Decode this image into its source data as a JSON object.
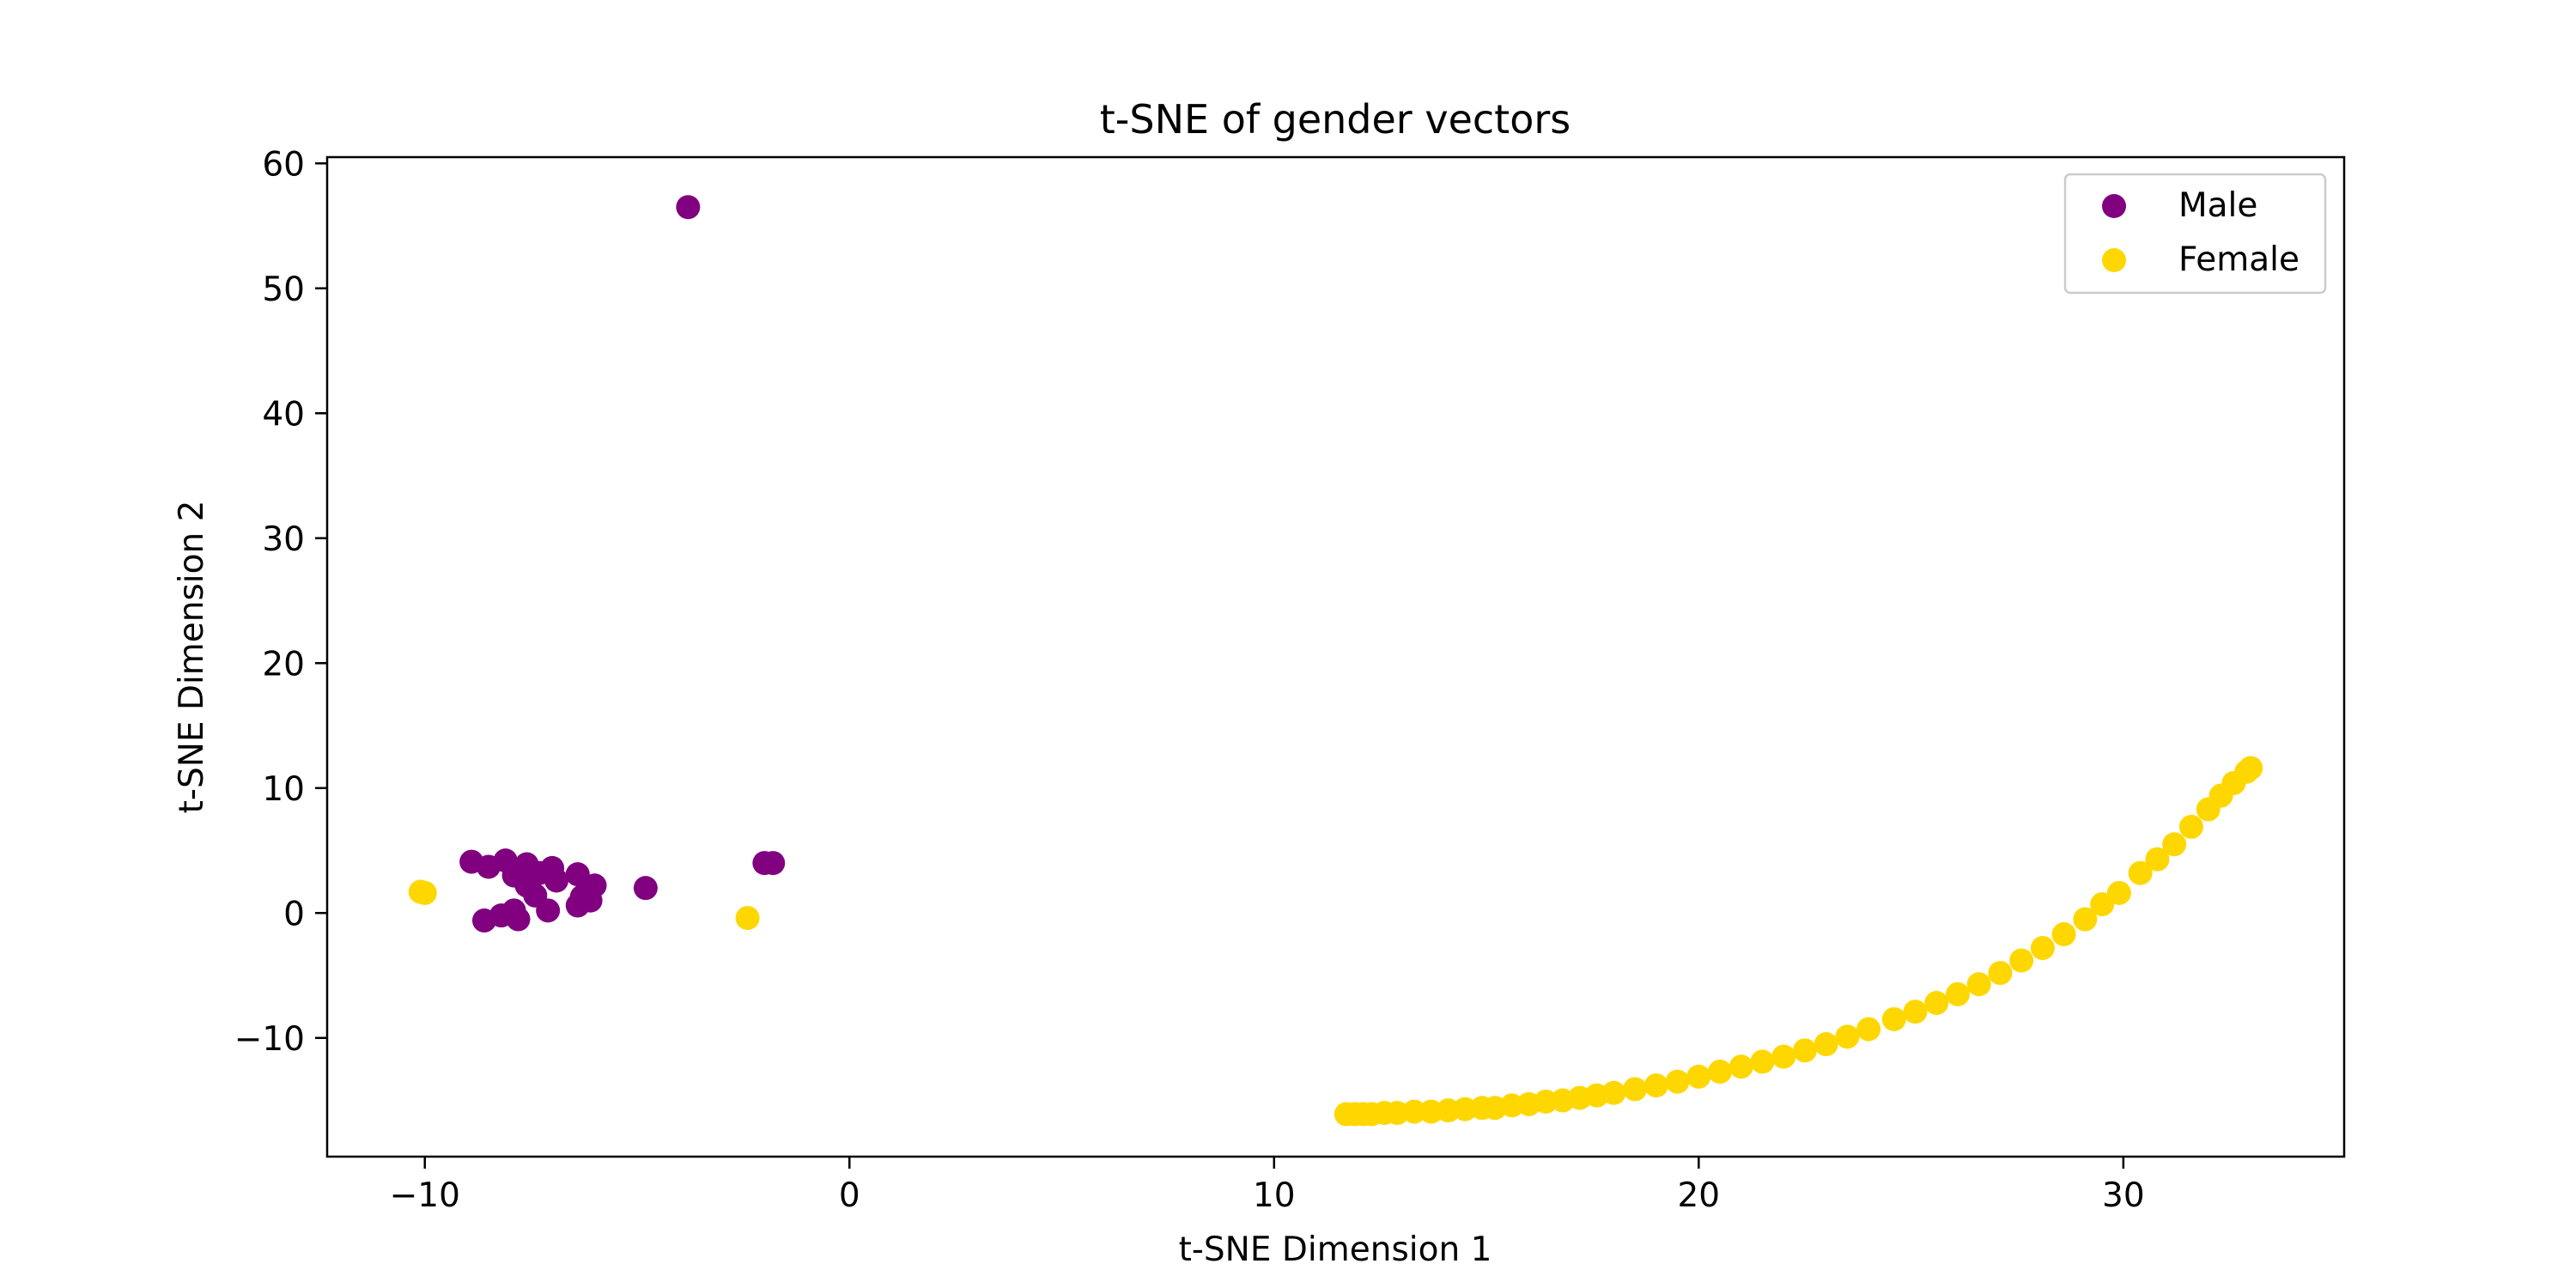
{
  "chart_data": {
    "type": "scatter",
    "title": "t-SNE of gender vectors",
    "xlabel": "t-SNE Dimension 1",
    "ylabel": "t-SNE Dimension 2",
    "xlim": [
      -12.3,
      35.2
    ],
    "ylim": [
      -19.5,
      60.5
    ],
    "xticks": [
      -10,
      0,
      10,
      20,
      30
    ],
    "xtick_labels": [
      "−10",
      "0",
      "10",
      "20",
      "30"
    ],
    "yticks": [
      -10,
      0,
      10,
      20,
      30,
      40,
      50,
      60
    ],
    "ytick_labels": [
      "−10",
      "0",
      "10",
      "20",
      "30",
      "40",
      "50",
      "60"
    ],
    "grid": false,
    "legend_position": "upper right",
    "series": [
      {
        "name": "Male",
        "color": "#800080",
        "points": [
          [
            -3.8,
            56.5
          ],
          [
            -8.9,
            4.1
          ],
          [
            -8.5,
            3.7
          ],
          [
            -8.1,
            4.2
          ],
          [
            -7.6,
            3.9
          ],
          [
            -7.0,
            3.6
          ],
          [
            -7.9,
            3.0
          ],
          [
            -7.3,
            3.2
          ],
          [
            -6.9,
            2.6
          ],
          [
            -6.4,
            3.1
          ],
          [
            -6.0,
            2.2
          ],
          [
            -7.6,
            2.2
          ],
          [
            -7.4,
            1.4
          ],
          [
            -6.3,
            1.3
          ],
          [
            -6.1,
            1.0
          ],
          [
            -6.4,
            0.6
          ],
          [
            -8.6,
            -0.6
          ],
          [
            -8.2,
            -0.2
          ],
          [
            -7.9,
            0.2
          ],
          [
            -7.8,
            -0.5
          ],
          [
            -7.1,
            0.2
          ],
          [
            -4.8,
            2.0
          ],
          [
            -2.0,
            4.0
          ],
          [
            -1.8,
            4.0
          ]
        ]
      },
      {
        "name": "Female",
        "color": "#ffd700",
        "points": [
          [
            -10.1,
            1.7
          ],
          [
            -10.0,
            1.6
          ],
          [
            -2.4,
            -0.4
          ],
          [
            11.7,
            -16.1
          ],
          [
            11.9,
            -16.1
          ],
          [
            12.1,
            -16.1
          ],
          [
            12.3,
            -16.1
          ],
          [
            12.6,
            -16.0
          ],
          [
            12.9,
            -16.0
          ],
          [
            13.3,
            -15.9
          ],
          [
            13.7,
            -15.9
          ],
          [
            14.1,
            -15.8
          ],
          [
            14.5,
            -15.7
          ],
          [
            14.9,
            -15.6
          ],
          [
            15.2,
            -15.6
          ],
          [
            15.6,
            -15.4
          ],
          [
            16.0,
            -15.3
          ],
          [
            16.4,
            -15.1
          ],
          [
            16.8,
            -15.0
          ],
          [
            17.2,
            -14.8
          ],
          [
            17.6,
            -14.6
          ],
          [
            18.0,
            -14.4
          ],
          [
            18.5,
            -14.1
          ],
          [
            19.0,
            -13.8
          ],
          [
            19.5,
            -13.5
          ],
          [
            20.0,
            -13.1
          ],
          [
            20.5,
            -12.7
          ],
          [
            21.0,
            -12.3
          ],
          [
            21.5,
            -11.9
          ],
          [
            22.0,
            -11.5
          ],
          [
            22.5,
            -11.0
          ],
          [
            23.0,
            -10.5
          ],
          [
            23.5,
            -9.9
          ],
          [
            24.0,
            -9.3
          ],
          [
            24.6,
            -8.5
          ],
          [
            25.1,
            -7.9
          ],
          [
            25.6,
            -7.2
          ],
          [
            26.1,
            -6.5
          ],
          [
            26.6,
            -5.7
          ],
          [
            27.1,
            -4.8
          ],
          [
            27.6,
            -3.8
          ],
          [
            28.1,
            -2.8
          ],
          [
            28.6,
            -1.7
          ],
          [
            29.1,
            -0.5
          ],
          [
            29.5,
            0.7
          ],
          [
            29.9,
            1.6
          ],
          [
            30.4,
            3.2
          ],
          [
            30.8,
            4.3
          ],
          [
            31.2,
            5.5
          ],
          [
            31.6,
            6.9
          ],
          [
            32.0,
            8.3
          ],
          [
            32.3,
            9.4
          ],
          [
            32.6,
            10.4
          ],
          [
            32.9,
            11.3
          ],
          [
            33.0,
            11.6
          ]
        ]
      }
    ]
  }
}
